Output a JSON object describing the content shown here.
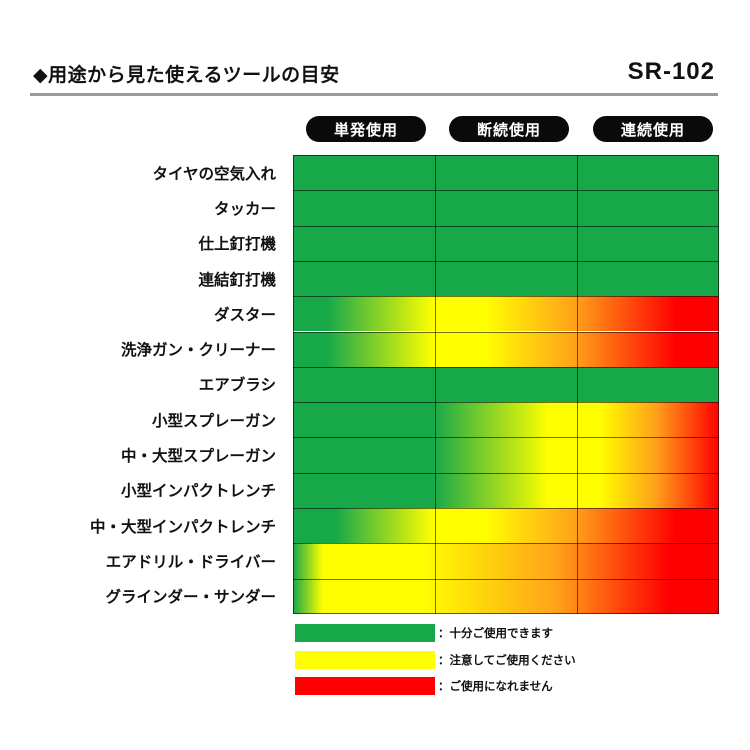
{
  "title": "◆用途から見た使えるツールの目安",
  "model": "SR-102",
  "colors": {
    "green": "#17a84a",
    "yellow": "#ffff00",
    "orange": "#ffa21a",
    "red": "#ff0000"
  },
  "chart_data": {
    "type": "heatmap",
    "columns": [
      "単発使用",
      "断続使用",
      "連続使用"
    ],
    "rows": [
      {
        "label": "タイヤの空気入れ",
        "levels": [
          "green",
          "green",
          "green"
        ],
        "gradient": [
          [
            0,
            "green"
          ],
          [
            1,
            "green"
          ]
        ]
      },
      {
        "label": "タッカー",
        "levels": [
          "green",
          "green",
          "green"
        ],
        "gradient": [
          [
            0,
            "green"
          ],
          [
            1,
            "green"
          ]
        ]
      },
      {
        "label": "仕上釘打機",
        "levels": [
          "green",
          "green",
          "green"
        ],
        "gradient": [
          [
            0,
            "green"
          ],
          [
            1,
            "green"
          ]
        ]
      },
      {
        "label": "連結釘打機",
        "levels": [
          "green",
          "green",
          "green"
        ],
        "gradient": [
          [
            0,
            "green"
          ],
          [
            1,
            "green"
          ]
        ]
      },
      {
        "label": "ダスター",
        "levels": [
          "green-yellow",
          "yellow-orange",
          "red"
        ],
        "gradient": [
          [
            0,
            "green"
          ],
          [
            0.08,
            "green"
          ],
          [
            0.33,
            "yellow"
          ],
          [
            0.45,
            "yellow"
          ],
          [
            0.66,
            "orange"
          ],
          [
            0.9,
            "red"
          ],
          [
            1,
            "red"
          ]
        ]
      },
      {
        "label": "洗浄ガン・クリーナー",
        "levels": [
          "green-yellow",
          "yellow-orange",
          "red"
        ],
        "gradient": [
          [
            0,
            "green"
          ],
          [
            0.08,
            "green"
          ],
          [
            0.33,
            "yellow"
          ],
          [
            0.45,
            "yellow"
          ],
          [
            0.66,
            "orange"
          ],
          [
            0.9,
            "red"
          ],
          [
            1,
            "red"
          ]
        ]
      },
      {
        "label": "エアブラシ",
        "levels": [
          "green",
          "green",
          "green"
        ],
        "gradient": [
          [
            0,
            "green"
          ],
          [
            1,
            "green"
          ]
        ]
      },
      {
        "label": "小型スプレーガン",
        "levels": [
          "green",
          "green-yellow",
          "orange-red"
        ],
        "gradient": [
          [
            0,
            "green"
          ],
          [
            0.33,
            "green"
          ],
          [
            0.6,
            "yellow"
          ],
          [
            0.72,
            "yellow"
          ],
          [
            0.85,
            "orange"
          ],
          [
            1,
            "red"
          ]
        ]
      },
      {
        "label": "中・大型スプレーガン",
        "levels": [
          "green",
          "green-yellow",
          "orange-red"
        ],
        "gradient": [
          [
            0,
            "green"
          ],
          [
            0.33,
            "green"
          ],
          [
            0.6,
            "yellow"
          ],
          [
            0.72,
            "yellow"
          ],
          [
            0.85,
            "orange"
          ],
          [
            1,
            "red"
          ]
        ]
      },
      {
        "label": "小型インパクトレンチ",
        "levels": [
          "green",
          "green-yellow",
          "orange-red"
        ],
        "gradient": [
          [
            0,
            "green"
          ],
          [
            0.33,
            "green"
          ],
          [
            0.6,
            "yellow"
          ],
          [
            0.72,
            "yellow"
          ],
          [
            0.85,
            "orange"
          ],
          [
            1,
            "red"
          ]
        ]
      },
      {
        "label": "中・大型インパクトレンチ",
        "levels": [
          "green-yellow",
          "yellow-orange",
          "red"
        ],
        "gradient": [
          [
            0,
            "green"
          ],
          [
            0.1,
            "green"
          ],
          [
            0.33,
            "yellow"
          ],
          [
            0.45,
            "yellow"
          ],
          [
            0.66,
            "orange"
          ],
          [
            0.9,
            "red"
          ],
          [
            1,
            "red"
          ]
        ]
      },
      {
        "label": "エアドリル・ドライバー",
        "levels": [
          "yellow",
          "yellow-orange",
          "red"
        ],
        "gradient": [
          [
            0,
            "green"
          ],
          [
            0.07,
            "yellow"
          ],
          [
            0.3,
            "yellow"
          ],
          [
            0.62,
            "orange"
          ],
          [
            0.88,
            "red"
          ],
          [
            1,
            "red"
          ]
        ]
      },
      {
        "label": "グラインダー・サンダー",
        "levels": [
          "yellow",
          "yellow-orange",
          "red"
        ],
        "gradient": [
          [
            0,
            "green"
          ],
          [
            0.07,
            "yellow"
          ],
          [
            0.3,
            "yellow"
          ],
          [
            0.62,
            "orange"
          ],
          [
            0.88,
            "red"
          ],
          [
            1,
            "red"
          ]
        ]
      }
    ],
    "legend": [
      {
        "color": "green",
        "label": "：十分ご使用できます"
      },
      {
        "color": "yellow",
        "label": "：注意してご使用ください"
      },
      {
        "color": "red",
        "label": "：ご使用になれません"
      }
    ]
  }
}
